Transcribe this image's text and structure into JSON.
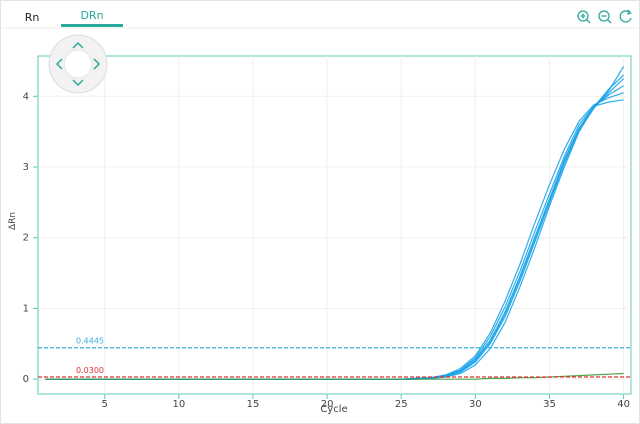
{
  "tabs": [
    "Rn",
    "DRn"
  ],
  "chart_data": {
    "type": "line",
    "xlabel": "Cycle",
    "ylabel": "ΔRn",
    "x": [
      1,
      2,
      3,
      4,
      5,
      6,
      7,
      8,
      9,
      10,
      11,
      12,
      13,
      14,
      15,
      16,
      17,
      18,
      19,
      20,
      21,
      22,
      23,
      24,
      25,
      26,
      27,
      28,
      29,
      30,
      31,
      32,
      33,
      34,
      35,
      36,
      37,
      38,
      39,
      40
    ],
    "series": [
      {
        "color": "#1aa3e8",
        "values": [
          0,
          0,
          0,
          0,
          0,
          0,
          0,
          0,
          0,
          0,
          0,
          0,
          0,
          0,
          0,
          0,
          0,
          0,
          0,
          0,
          0,
          0,
          0,
          0,
          0,
          0.01,
          0.02,
          0.05,
          0.12,
          0.28,
          0.55,
          0.95,
          1.45,
          2.0,
          2.55,
          3.1,
          3.55,
          3.85,
          4.02,
          4.15
        ]
      },
      {
        "color": "#1aa3e8",
        "values": [
          0,
          0,
          0,
          0,
          0,
          0,
          0,
          0,
          0,
          0,
          0,
          0,
          0,
          0,
          0,
          0,
          0,
          0,
          0,
          0,
          0,
          0,
          0,
          0,
          0,
          0,
          0.01,
          0.03,
          0.08,
          0.2,
          0.43,
          0.8,
          1.3,
          1.85,
          2.45,
          3.0,
          3.5,
          3.85,
          4.1,
          4.3
        ]
      },
      {
        "color": "#1aa3e8",
        "values": [
          0,
          0,
          0,
          0,
          0,
          0,
          0,
          0,
          0,
          0,
          0,
          0,
          0,
          0,
          0,
          0,
          0,
          0,
          0,
          0,
          0,
          0,
          0,
          0,
          0,
          0.01,
          0.02,
          0.06,
          0.15,
          0.33,
          0.65,
          1.1,
          1.62,
          2.2,
          2.75,
          3.25,
          3.65,
          3.88,
          3.98,
          4.05
        ]
      },
      {
        "color": "#1aa3e8",
        "values": [
          0,
          0,
          0,
          0,
          0,
          0,
          0,
          0,
          0,
          0,
          0,
          0,
          0,
          0,
          0,
          0,
          0,
          0,
          0,
          0,
          0,
          0,
          0,
          0,
          0,
          0,
          0.01,
          0.04,
          0.1,
          0.24,
          0.5,
          0.88,
          1.38,
          1.93,
          2.5,
          3.05,
          3.52,
          3.83,
          4.08,
          4.42
        ]
      },
      {
        "color": "#1aa3e8",
        "values": [
          0,
          0,
          0,
          0,
          0,
          0,
          0,
          0,
          0,
          0,
          0,
          0,
          0,
          0,
          0,
          0,
          0,
          0,
          0,
          0,
          0,
          0,
          0,
          0,
          0,
          0.01,
          0.02,
          0.05,
          0.13,
          0.3,
          0.6,
          1.02,
          1.52,
          2.08,
          2.62,
          3.15,
          3.6,
          3.86,
          3.92,
          3.95
        ]
      },
      {
        "color": "#1aa3e8",
        "values": [
          0,
          0,
          0,
          0,
          0,
          0,
          0,
          0,
          0,
          0,
          0,
          0,
          0,
          0,
          0,
          0,
          0,
          0,
          0,
          0,
          0,
          0,
          0,
          0,
          0,
          0,
          0.01,
          0.04,
          0.11,
          0.26,
          0.52,
          0.92,
          1.42,
          1.97,
          2.52,
          3.08,
          3.55,
          3.84,
          4.05,
          4.25
        ]
      },
      {
        "color": "#3a9a3a",
        "values": [
          0,
          0,
          0,
          0,
          0,
          0,
          0,
          0,
          0,
          0,
          0,
          0,
          0,
          0,
          0,
          0,
          0,
          0,
          0,
          0,
          0,
          0,
          0,
          0,
          0,
          0,
          0,
          0,
          0,
          0,
          0.01,
          0.01,
          0.02,
          0.02,
          0.03,
          0.04,
          0.05,
          0.06,
          0.07,
          0.08
        ]
      }
    ],
    "thresholds": [
      {
        "value": 0.4445,
        "color": "#3bb0e0"
      },
      {
        "value": 0.03,
        "label": "0.0300",
        "color": "#e03030"
      }
    ],
    "xlim": [
      0.5,
      40.5
    ],
    "xticks": [
      5,
      10,
      15,
      20,
      25,
      30,
      35,
      40
    ],
    "ylim": [
      -0.21,
      4.57
    ],
    "yticks": [
      0,
      1,
      2,
      3,
      4
    ],
    "grid": true
  }
}
